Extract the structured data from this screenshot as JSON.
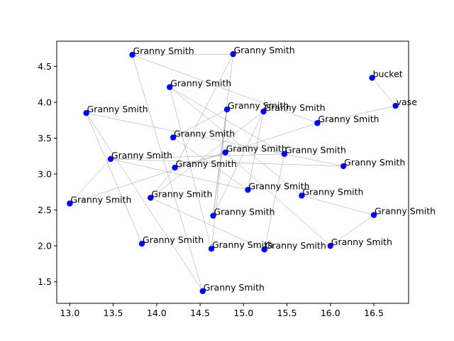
{
  "chart_data": {
    "type": "scatter",
    "title": "",
    "xlabel": "",
    "ylabel": "",
    "xlim": [
      12.85,
      16.9
    ],
    "ylim": [
      1.2,
      4.85
    ],
    "xticks": [
      13.0,
      13.5,
      14.0,
      14.5,
      15.0,
      15.5,
      16.0,
      16.5
    ],
    "xtick_labels": [
      "13.0",
      "13.5",
      "14.0",
      "14.5",
      "15.0",
      "15.5",
      "16.0",
      "16.5"
    ],
    "yticks": [
      1.5,
      2.0,
      2.5,
      3.0,
      3.5,
      4.0,
      4.5
    ],
    "ytick_labels": [
      "1.5",
      "2.0",
      "2.5",
      "3.0",
      "3.5",
      "4.0",
      "4.5"
    ],
    "grid": false,
    "marker_color": "#0000ff",
    "edge_color": "#999999",
    "points": [
      {
        "x": 13.72,
        "y": 4.66,
        "label": "Granny Smith"
      },
      {
        "x": 14.88,
        "y": 4.67,
        "label": "Granny Smith"
      },
      {
        "x": 14.15,
        "y": 4.21,
        "label": "Granny Smith"
      },
      {
        "x": 16.48,
        "y": 4.34,
        "label": "bucket"
      },
      {
        "x": 16.75,
        "y": 3.95,
        "label": "vase"
      },
      {
        "x": 13.19,
        "y": 3.85,
        "label": "Granny Smith"
      },
      {
        "x": 14.81,
        "y": 3.9,
        "label": "Granny Smith"
      },
      {
        "x": 15.23,
        "y": 3.87,
        "label": "Granny Smith"
      },
      {
        "x": 15.85,
        "y": 3.71,
        "label": "Granny Smith"
      },
      {
        "x": 14.19,
        "y": 3.51,
        "label": "Granny Smith"
      },
      {
        "x": 14.79,
        "y": 3.3,
        "label": "Granny Smith"
      },
      {
        "x": 15.47,
        "y": 3.28,
        "label": "Granny Smith"
      },
      {
        "x": 13.47,
        "y": 3.21,
        "label": "Granny Smith"
      },
      {
        "x": 16.15,
        "y": 3.11,
        "label": "Granny Smith"
      },
      {
        "x": 14.21,
        "y": 3.09,
        "label": "Granny Smith"
      },
      {
        "x": 15.05,
        "y": 2.78,
        "label": "Granny Smith"
      },
      {
        "x": 15.67,
        "y": 2.7,
        "label": "Granny Smith"
      },
      {
        "x": 13.93,
        "y": 2.67,
        "label": "Granny Smith"
      },
      {
        "x": 13.0,
        "y": 2.59,
        "label": "Granny Smith"
      },
      {
        "x": 16.5,
        "y": 2.43,
        "label": "Granny Smith"
      },
      {
        "x": 14.65,
        "y": 2.42,
        "label": "Granny Smith"
      },
      {
        "x": 13.83,
        "y": 2.03,
        "label": "Granny Smith"
      },
      {
        "x": 16.0,
        "y": 2.0,
        "label": "Granny Smith"
      },
      {
        "x": 14.63,
        "y": 1.96,
        "label": "Granny Smith"
      },
      {
        "x": 15.24,
        "y": 1.95,
        "label": "Granny Smith"
      },
      {
        "x": 14.53,
        "y": 1.37,
        "label": "Granny Smith"
      }
    ],
    "edges": [
      [
        0,
        1
      ],
      [
        0,
        8
      ],
      [
        1,
        14
      ],
      [
        1,
        20
      ],
      [
        2,
        11
      ],
      [
        2,
        16
      ],
      [
        4,
        3
      ],
      [
        4,
        8
      ],
      [
        5,
        13
      ],
      [
        5,
        21
      ],
      [
        5,
        25
      ],
      [
        6,
        9
      ],
      [
        6,
        23
      ],
      [
        7,
        15
      ],
      [
        7,
        17
      ],
      [
        8,
        18
      ],
      [
        10,
        14
      ],
      [
        10,
        22
      ],
      [
        11,
        12
      ],
      [
        11,
        24
      ],
      [
        12,
        13
      ],
      [
        12,
        15
      ],
      [
        12,
        18
      ],
      [
        14,
        17
      ],
      [
        15,
        9
      ],
      [
        16,
        19
      ],
      [
        17,
        24
      ],
      [
        20,
        7
      ],
      [
        22,
        19
      ],
      [
        25,
        0
      ],
      [
        6,
        20
      ],
      [
        2,
        23
      ]
    ]
  }
}
